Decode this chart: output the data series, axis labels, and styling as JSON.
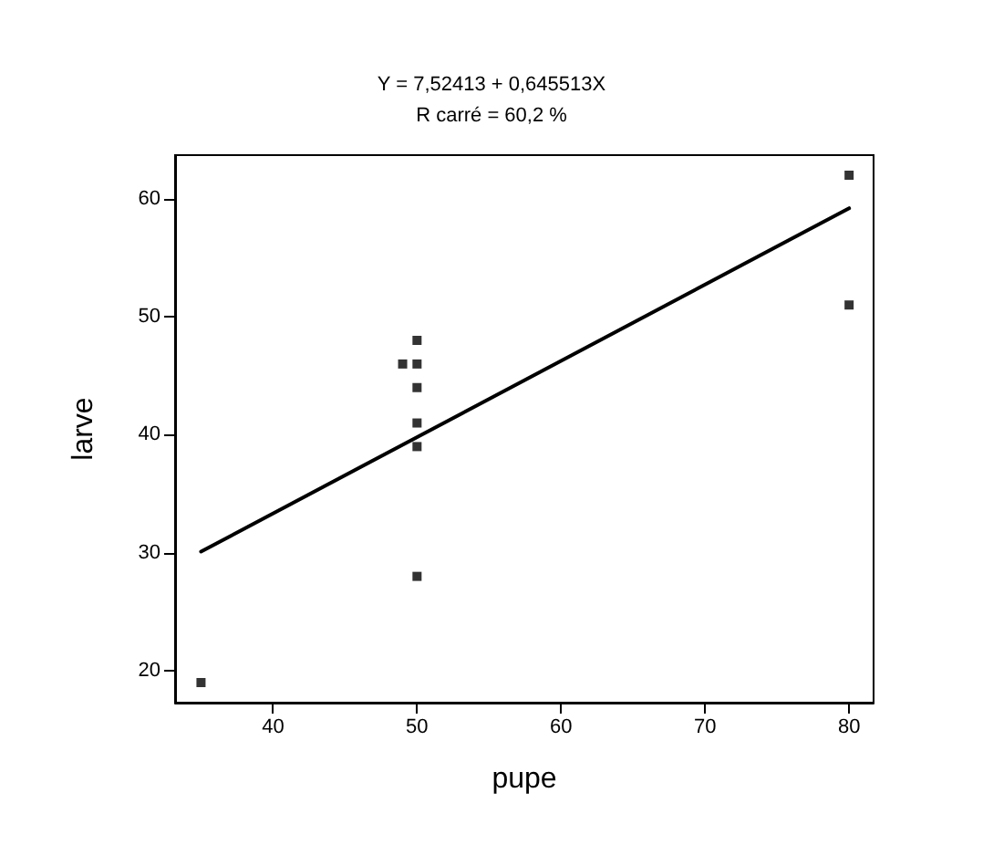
{
  "chart_data": {
    "type": "scatter",
    "title": "Y = 7,52413 + 0,645513X",
    "subtitle": "R carré = 60,2 %",
    "xlabel": "pupe",
    "ylabel": "larve",
    "marker": "square",
    "grid": false,
    "xlim": [
      33.2,
      81.7
    ],
    "ylim": [
      17.3,
      63.7
    ],
    "xticks": [
      40,
      50,
      60,
      70,
      80
    ],
    "yticks": [
      20,
      30,
      40,
      50,
      60
    ],
    "series": [
      {
        "color": "#000000",
        "x": [
          35,
          49,
          50,
          50,
          50,
          50,
          50,
          50,
          80,
          80
        ],
        "values": [
          19,
          46,
          48,
          46,
          44,
          41,
          39,
          28,
          62,
          51
        ]
      },
      {
        "type": "line",
        "color": "#000000",
        "marker": "none",
        "line_style": "solid",
        "x": [
          35,
          80
        ],
        "values": [
          30.1,
          59.2
        ]
      }
    ]
  }
}
